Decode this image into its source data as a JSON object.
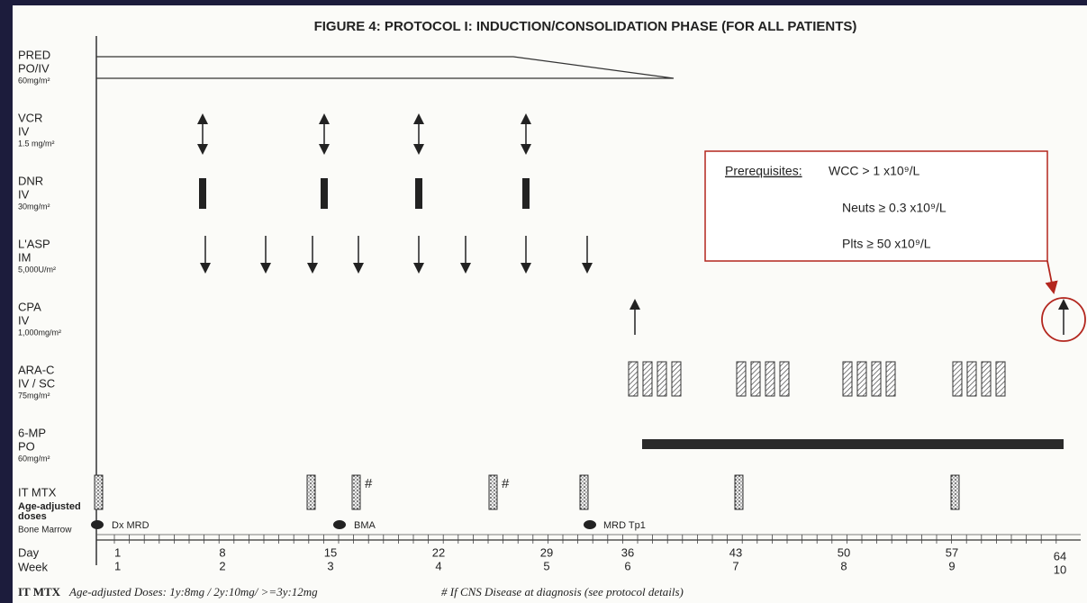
{
  "title": "FIGURE 4:  PROTOCOL I:  INDUCTION/CONSOLIDATION PHASE (FOR ALL PATIENTS)",
  "drugs": [
    {
      "name": "PRED",
      "lines": [
        "PO/IV",
        "60mg/m²"
      ]
    },
    {
      "name": "VCR",
      "lines": [
        "IV",
        "1.5 mg/m²"
      ]
    },
    {
      "name": "DNR",
      "lines": [
        "IV",
        "30mg/m²"
      ]
    },
    {
      "name": "L'ASP",
      "lines": [
        "IM",
        "5,000U/m²"
      ]
    },
    {
      "name": "CPA",
      "lines": [
        "IV",
        "1,000mg/m²"
      ]
    },
    {
      "name": "ARA-C",
      "lines": [
        "IV / SC",
        "75mg/m²"
      ]
    },
    {
      "name": "6-MP",
      "lines": [
        "PO",
        "60mg/m²"
      ]
    },
    {
      "name": "IT MTX",
      "lines": [
        "Age-adjusted",
        "doses"
      ]
    }
  ],
  "bone_marrow": {
    "label": "Bone Marrow",
    "events": [
      "Dx MRD",
      "BMA",
      "MRD Tp1"
    ]
  },
  "axis": {
    "day_label": "Day",
    "week_label": "Week",
    "days": [
      "1",
      "8",
      "15",
      "22",
      "29",
      "36",
      "43",
      "50",
      "57",
      "64"
    ],
    "weeks": [
      "1",
      "2",
      "3",
      "4",
      "5",
      "6",
      "7",
      "8",
      "9",
      "10"
    ]
  },
  "cns_marker": "#",
  "prerequisites": {
    "heading": "Prerequisites:",
    "items": [
      "WCC > 1 x10⁹/L",
      "Neuts ≥ 0.3 x10⁹/L",
      "Plts ≥ 50 x10⁹/L"
    ]
  },
  "footer": {
    "lead": "IT MTX",
    "doses": "Age-adjusted Doses:  1y:8mg / 2y:10mg/ >=3y:12mg",
    "cns_note": "# If CNS Disease at diagnosis (see protocol details)"
  }
}
